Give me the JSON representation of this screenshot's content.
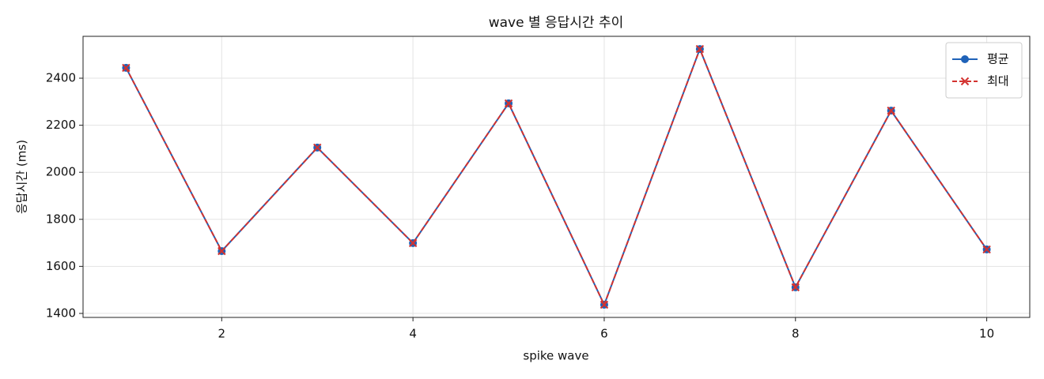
{
  "chart_data": {
    "type": "line",
    "title": "wave 별 응답시간 추이",
    "x_label": "spike wave",
    "y_label": "응답시간 (ms)",
    "x": [
      1,
      2,
      3,
      4,
      5,
      6,
      7,
      8,
      9,
      10
    ],
    "series": [
      {
        "name": "평균",
        "color": "#1f62b8",
        "marker": "circle",
        "linestyle": "solid",
        "values": [
          2444,
          1665,
          2105,
          1699,
          2293,
          1437,
          2524,
          1511,
          2262,
          1672
        ]
      },
      {
        "name": "최대",
        "color": "#d3322f",
        "marker": "x",
        "linestyle": "dashed",
        "values": [
          2444,
          1665,
          2105,
          1699,
          2293,
          1437,
          2524,
          1511,
          2262,
          1672
        ]
      }
    ],
    "xlim": [
      0.55,
      10.45
    ],
    "xticks": [
      2,
      4,
      6,
      8,
      10
    ],
    "ylim": [
      1383,
      2578
    ],
    "yticks": [
      1400,
      1600,
      1800,
      2000,
      2200,
      2400
    ],
    "grid": true,
    "legend": "upper right"
  }
}
